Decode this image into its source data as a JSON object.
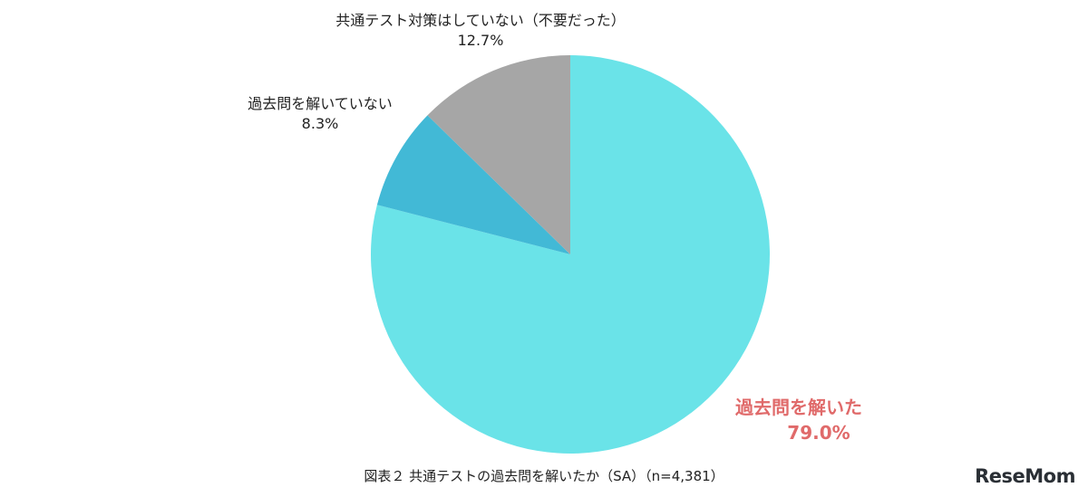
{
  "chart_data": {
    "type": "pie",
    "slices": [
      {
        "label": "過去問を解いた",
        "value": 79.0,
        "value_label": "79.0%",
        "color": "#6ae3e8",
        "highlight": true
      },
      {
        "label": "過去問を解いていない",
        "value": 8.3,
        "value_label": "8.3%",
        "color": "#42b9d6",
        "highlight": false
      },
      {
        "label": "共通テスト対策はしていない（不要だった）",
        "value": 12.7,
        "value_label": "12.7%",
        "color": "#a6a6a6",
        "highlight": false
      }
    ],
    "start": "top",
    "direction": "clockwise",
    "caption": "図表２ 共通テストの過去問を解いたか（SA）（n=4,381）",
    "highlight_color": "#e06a6a"
  },
  "logo": {
    "text": "ReseMom"
  }
}
